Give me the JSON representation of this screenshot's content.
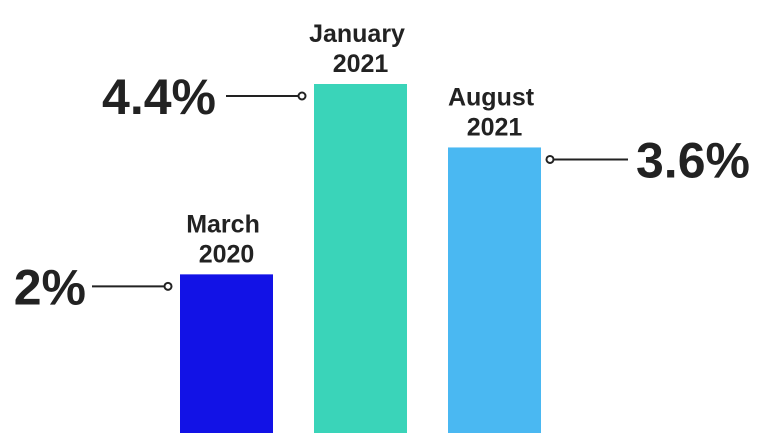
{
  "chart_data": {
    "type": "bar",
    "categories": [
      {
        "line1": "March",
        "line2": "2020"
      },
      {
        "line1": "January",
        "line2": "2021"
      },
      {
        "line1": "August",
        "line2": "2021"
      }
    ],
    "values": [
      2,
      4.4,
      3.6
    ],
    "value_labels": [
      "2%",
      "4.4%",
      "3.6%"
    ],
    "colors": [
      "#1212e6",
      "#3ad4b9",
      "#4ab8f2"
    ],
    "leader_color": "#222222",
    "text_color": "#222222",
    "ylim": [
      0,
      4.4
    ]
  }
}
